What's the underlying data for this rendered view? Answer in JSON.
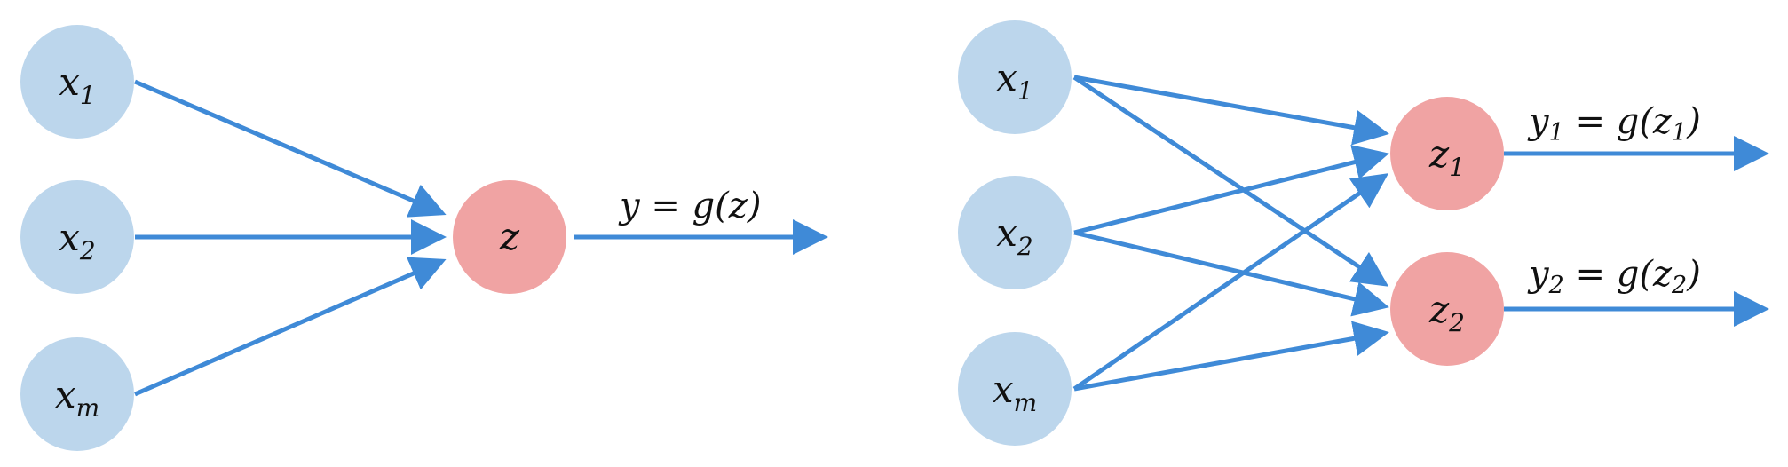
{
  "colors": {
    "input_node": "#bcd6ec",
    "output_node": "#f0a3a3",
    "edge": "#3f8ad7",
    "text": "#111111"
  },
  "left_network": {
    "inputs": [
      {
        "base": "x",
        "sub": "1"
      },
      {
        "base": "x",
        "sub": "2"
      },
      {
        "base": "x",
        "sub": "m"
      }
    ],
    "output": {
      "base": "z",
      "sub": ""
    },
    "equation": {
      "lhs": "y",
      "lhs_sub": "",
      "eq": " = g(",
      "arg": "z",
      "arg_sub": "",
      "close": ")"
    }
  },
  "right_network": {
    "inputs": [
      {
        "base": "x",
        "sub": "1"
      },
      {
        "base": "x",
        "sub": "2"
      },
      {
        "base": "x",
        "sub": "m"
      }
    ],
    "outputs": [
      {
        "base": "z",
        "sub": "1"
      },
      {
        "base": "z",
        "sub": "2"
      }
    ],
    "equations": [
      {
        "lhs": "y",
        "lhs_sub": "1",
        "eq": " = g(",
        "arg": "z",
        "arg_sub": "1",
        "close": ")"
      },
      {
        "lhs": "y",
        "lhs_sub": "2",
        "eq": " = g(",
        "arg": "z",
        "arg_sub": "2",
        "close": ")"
      }
    ]
  }
}
